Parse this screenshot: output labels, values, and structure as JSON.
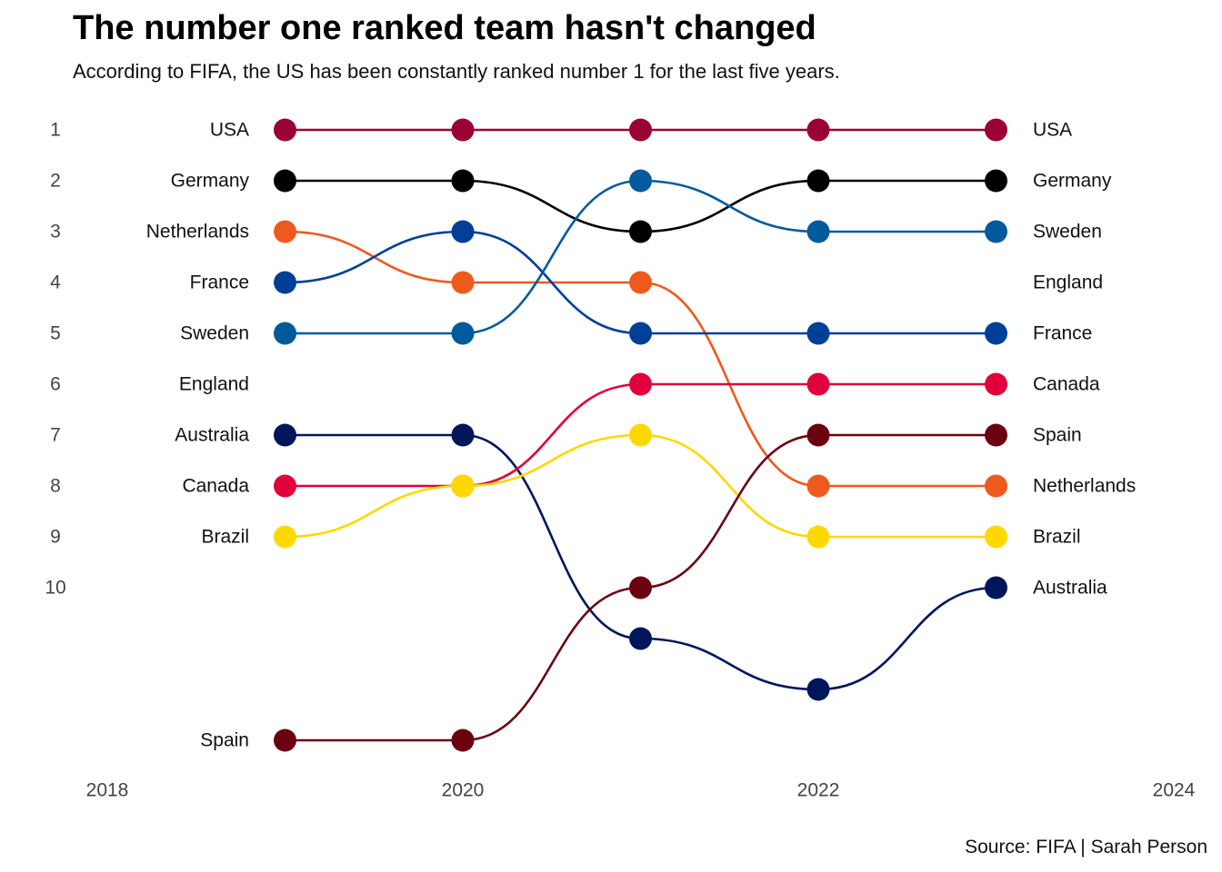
{
  "title": "The number one ranked team hasn't changed",
  "subtitle": "According to FIFA, the US has been constantly ranked number 1 for the last five years.",
  "caption": "Source: FIFA | Sarah Person",
  "chart_data": {
    "type": "line",
    "subtype": "bump",
    "x": [
      2019,
      2020,
      2021,
      2022,
      2023
    ],
    "xlim": [
      2018,
      2024
    ],
    "xticks": [
      2018,
      2020,
      2022,
      2024
    ],
    "ylabel_ticks": [
      1,
      2,
      3,
      4,
      5,
      6,
      7,
      8,
      9,
      10
    ],
    "y_reversed": true,
    "grid": false,
    "legend": "none",
    "start_labels": [
      "USA",
      "Germany",
      "Netherlands",
      "France",
      "Sweden",
      "England",
      "Australia",
      "Canada",
      "Brazil",
      "Spain"
    ],
    "end_labels": [
      "USA",
      "Germany",
      "Sweden",
      "England",
      "France",
      "Canada",
      "Spain",
      "Netherlands",
      "Brazil",
      "Australia"
    ],
    "series": [
      {
        "name": "USA",
        "color": "#9B0035",
        "values": [
          1,
          1,
          1,
          1,
          1
        ]
      },
      {
        "name": "Germany",
        "color": "#000000",
        "values": [
          2,
          2,
          3,
          2,
          2
        ]
      },
      {
        "name": "Netherlands",
        "color": "#EE5A1E",
        "values": [
          3,
          4,
          4,
          8,
          8
        ]
      },
      {
        "name": "France",
        "color": "#003F98",
        "values": [
          4,
          3,
          5,
          5,
          5
        ]
      },
      {
        "name": "Sweden",
        "color": "#005A9C",
        "values": [
          5,
          5,
          2,
          3,
          3
        ]
      },
      {
        "name": "England",
        "color": "#CF081F",
        "values": [
          null,
          null,
          null,
          null,
          null
        ]
      },
      {
        "name": "Australia",
        "color": "#00165A",
        "values": [
          7,
          7,
          11,
          12,
          10
        ]
      },
      {
        "name": "Canada",
        "color": "#E0003C",
        "values": [
          8,
          8,
          6,
          6,
          6
        ]
      },
      {
        "name": "Brazil",
        "color": "#FFD800",
        "values": [
          9,
          8,
          7,
          9,
          9
        ]
      },
      {
        "name": "Spain",
        "color": "#6B0011",
        "values": [
          13,
          13,
          10,
          7,
          7
        ]
      }
    ]
  }
}
